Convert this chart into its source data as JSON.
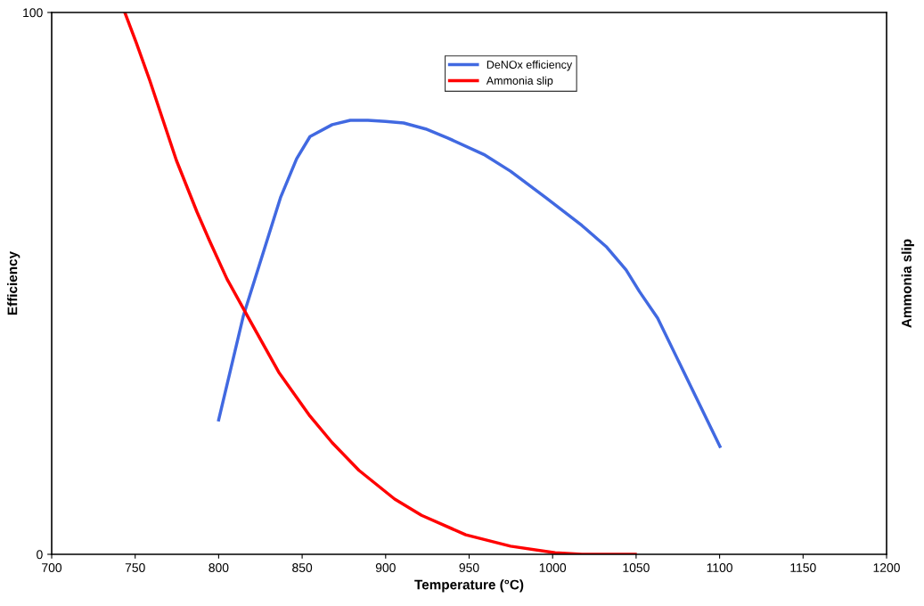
{
  "chart_data": {
    "type": "line",
    "xlabel": "Temperature (°C)",
    "ylabel": "Efficiency",
    "y2label": "Ammonia slip",
    "xlim": [
      700,
      1200
    ],
    "xticks": [
      700,
      750,
      800,
      850,
      900,
      950,
      1000,
      1050,
      1100,
      1150,
      1200
    ],
    "ylim": [
      0,
      100
    ],
    "yticks": [
      0,
      100
    ],
    "grid": false,
    "legend": "top",
    "marker": "none",
    "line_style": "solid",
    "series": [
      {
        "name": "DeNOx efficiency",
        "color": "#4169e1",
        "x": [
          800,
          814.7,
          837,
          846.7,
          854.7,
          868,
          878.8,
          889.4,
          900,
          910.8,
          924,
          937.5,
          958.8,
          974.8,
          996,
          1017.5,
          1032.4,
          1044,
          1052,
          1062.9,
          1100.2
        ],
        "values": [
          24.8,
          43.9,
          65.8,
          73,
          77.1,
          79.3,
          80.1,
          80.1,
          79.9,
          79.6,
          78.5,
          76.8,
          73.8,
          70.7,
          65.8,
          60.7,
          56.7,
          52.5,
          48.5,
          43.6,
          19.9
        ]
      },
      {
        "name": "Ammonia slip",
        "color": "#ff0000",
        "x": [
          743.8,
          750.7,
          758.7,
          766.7,
          774.7,
          787,
          794.5,
          805,
          817.4,
          836,
          854.7,
          868,
          884,
          905.4,
          921.5,
          948,
          974.8,
          1001.5,
          1017.5,
          1049.5
        ],
        "values": [
          100,
          94.4,
          87.5,
          80.1,
          72.7,
          63.2,
          57.9,
          50.8,
          43.9,
          33.6,
          25.5,
          20.6,
          15.5,
          10.2,
          7.2,
          3.6,
          1.5,
          0.3,
          0,
          0
        ]
      }
    ]
  }
}
